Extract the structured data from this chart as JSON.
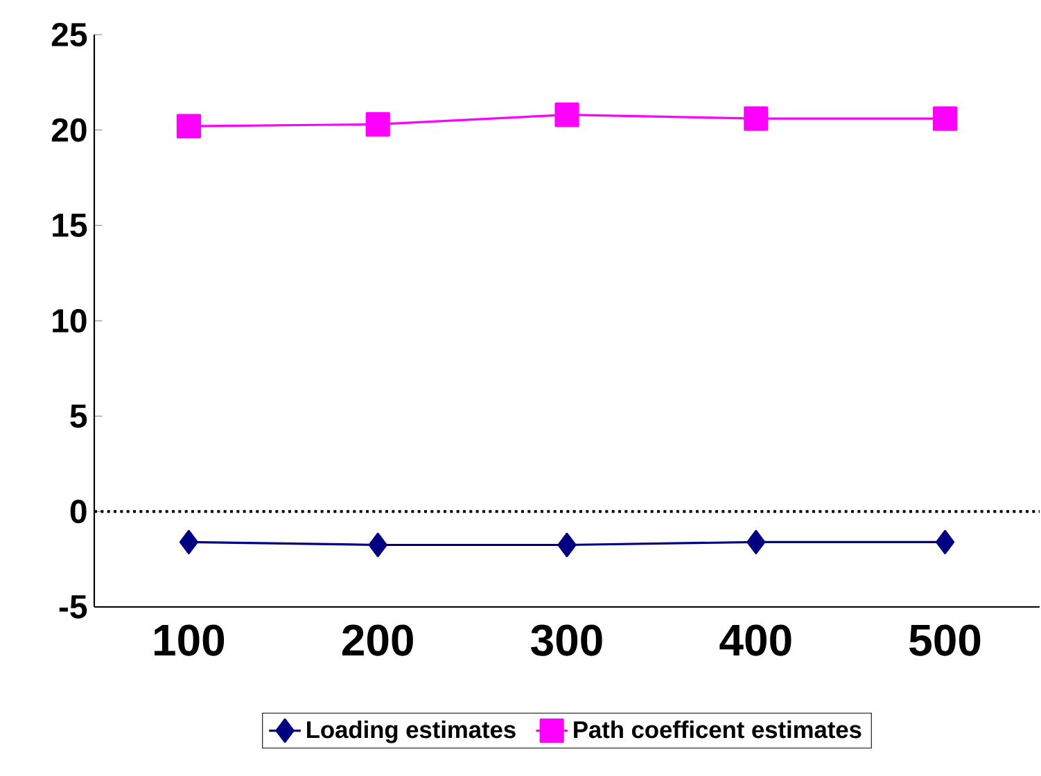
{
  "chart_data": {
    "type": "line",
    "categories": [
      "100",
      "200",
      "300",
      "400",
      "500"
    ],
    "series": [
      {
        "name": "Loading estimates",
        "color": "#000080",
        "marker": "diamond",
        "values": [
          -1.6,
          -1.75,
          -1.75,
          -1.6,
          -1.6
        ]
      },
      {
        "name": "Path coefficent estimates",
        "color": "#ff00ff",
        "marker": "square",
        "values": [
          20.2,
          20.3,
          20.8,
          20.6,
          20.6
        ]
      }
    ],
    "ylim": [
      -5,
      25
    ],
    "yticks": [
      -5,
      0,
      5,
      10,
      15,
      20,
      25
    ],
    "ref_lines": [
      {
        "axis": "y",
        "value": 0,
        "line_style": "dotted",
        "color": "#000000"
      }
    ],
    "legend": "bottom",
    "line_style": "solid",
    "grid": false
  }
}
